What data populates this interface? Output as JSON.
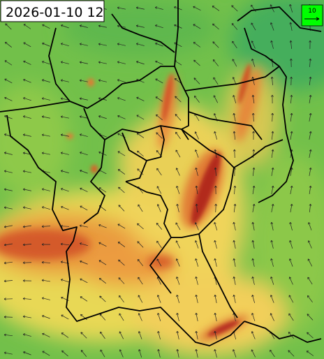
{
  "map": {
    "timestamp": "2026-01-10 12",
    "legend": {
      "label": "10"
    }
  }
}
